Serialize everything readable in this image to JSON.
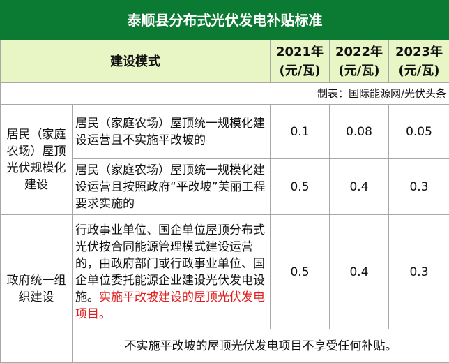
{
  "title": "泰顺县分布式光伏发电补贴标准",
  "header": {
    "mode": "建设模式",
    "years": [
      "2021年",
      "2022年",
      "2023年"
    ],
    "unit": "(元/瓦)"
  },
  "source_note": "制表：国际能源网/光伏头条",
  "groups": [
    {
      "category": "居民（家庭农场）屋顶光伏规模化建设",
      "rows": [
        {
          "desc": "居民（家庭农场）屋顶统一规模化建设运营且不实施平改坡的",
          "values": [
            "0.1",
            "0.08",
            "0.05"
          ]
        },
        {
          "desc": "居民（家庭农场）屋顶统一规模化建设运营且按照政府“平改坡”美丽工程要求实施的",
          "values": [
            "0.5",
            "0.4",
            "0.3"
          ]
        }
      ]
    },
    {
      "category": "政府统一组织建设",
      "rows": [
        {
          "desc": "行政事业单位、国企单位屋顶分布式光伏按合同能源管理模式建设运营的，由政府部门或行政事业单位、国企单位委托能源企业建设光伏发电设施。",
          "desc_highlight": "实施平改坡建设的屋顶光伏发电项目。",
          "values": [
            "0.5",
            "0.4",
            "0.3"
          ]
        }
      ],
      "footer": "不实施平改坡的屋顶光伏发电项目不享受任何补贴。"
    }
  ],
  "colors": {
    "title_bg": "#0b7a32",
    "header_bg": "#e8f5c4",
    "highlight": "#e02020"
  }
}
